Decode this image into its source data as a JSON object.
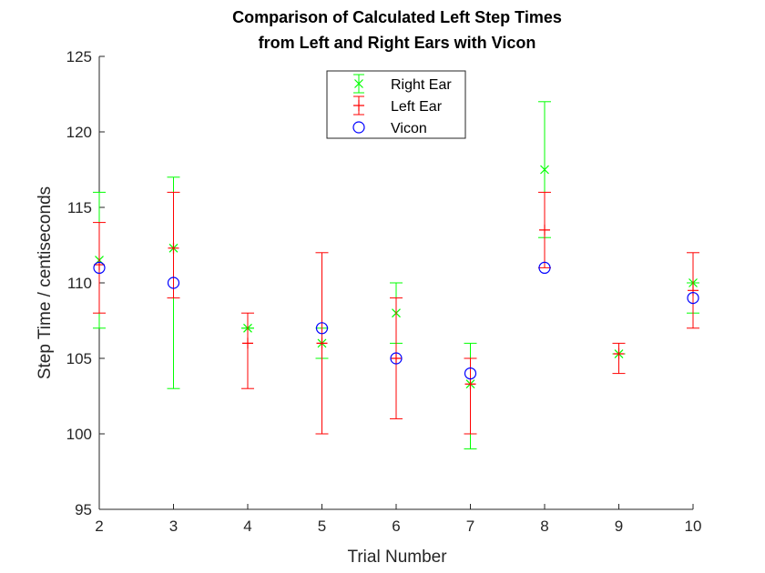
{
  "chart_data": {
    "type": "scatter",
    "title": "Comparison of Calculated Left Step Times",
    "subtitle": "from Left and Right Ears with Vicon",
    "xlabel": "Trial Number",
    "ylabel": "Step Time / centiseconds",
    "xlim": [
      2,
      10
    ],
    "ylim": [
      95,
      125
    ],
    "x_ticks": [
      2,
      3,
      4,
      5,
      6,
      7,
      8,
      9,
      10
    ],
    "y_ticks": [
      95,
      100,
      105,
      110,
      115,
      120,
      125
    ],
    "grid": false,
    "legend_position": "top-center",
    "series": [
      {
        "name": "Right Ear",
        "color": "#00ff00",
        "marker": "x",
        "x": [
          2,
          3,
          4,
          5,
          6,
          7,
          8,
          9,
          10
        ],
        "y": [
          111.5,
          112.3,
          107,
          106,
          108,
          103.3,
          117.5,
          105.3,
          110
        ],
        "err_low": [
          107,
          103,
          107,
          105,
          106,
          99,
          113,
          105.3,
          108
        ],
        "err_high": [
          116,
          117,
          107,
          107,
          110,
          106,
          122,
          105.3,
          110
        ]
      },
      {
        "name": "Left Ear",
        "color": "#ff0000",
        "marker": "+",
        "x": [
          2,
          3,
          4,
          5,
          6,
          7,
          8,
          9,
          10
        ],
        "y": [
          111.2,
          112.3,
          106,
          106,
          105,
          103.3,
          113.5,
          105.3,
          109.5
        ],
        "err_low": [
          108,
          109,
          103,
          100,
          101,
          100,
          111,
          104,
          107
        ],
        "err_high": [
          114,
          116,
          108,
          112,
          109,
          105,
          116,
          106,
          112
        ]
      },
      {
        "name": "Vicon",
        "color": "#0000ff",
        "marker": "o",
        "x": [
          2,
          3,
          5,
          6,
          7,
          8,
          10
        ],
        "y": [
          111,
          110,
          107,
          105,
          104,
          111,
          109
        ]
      }
    ]
  }
}
